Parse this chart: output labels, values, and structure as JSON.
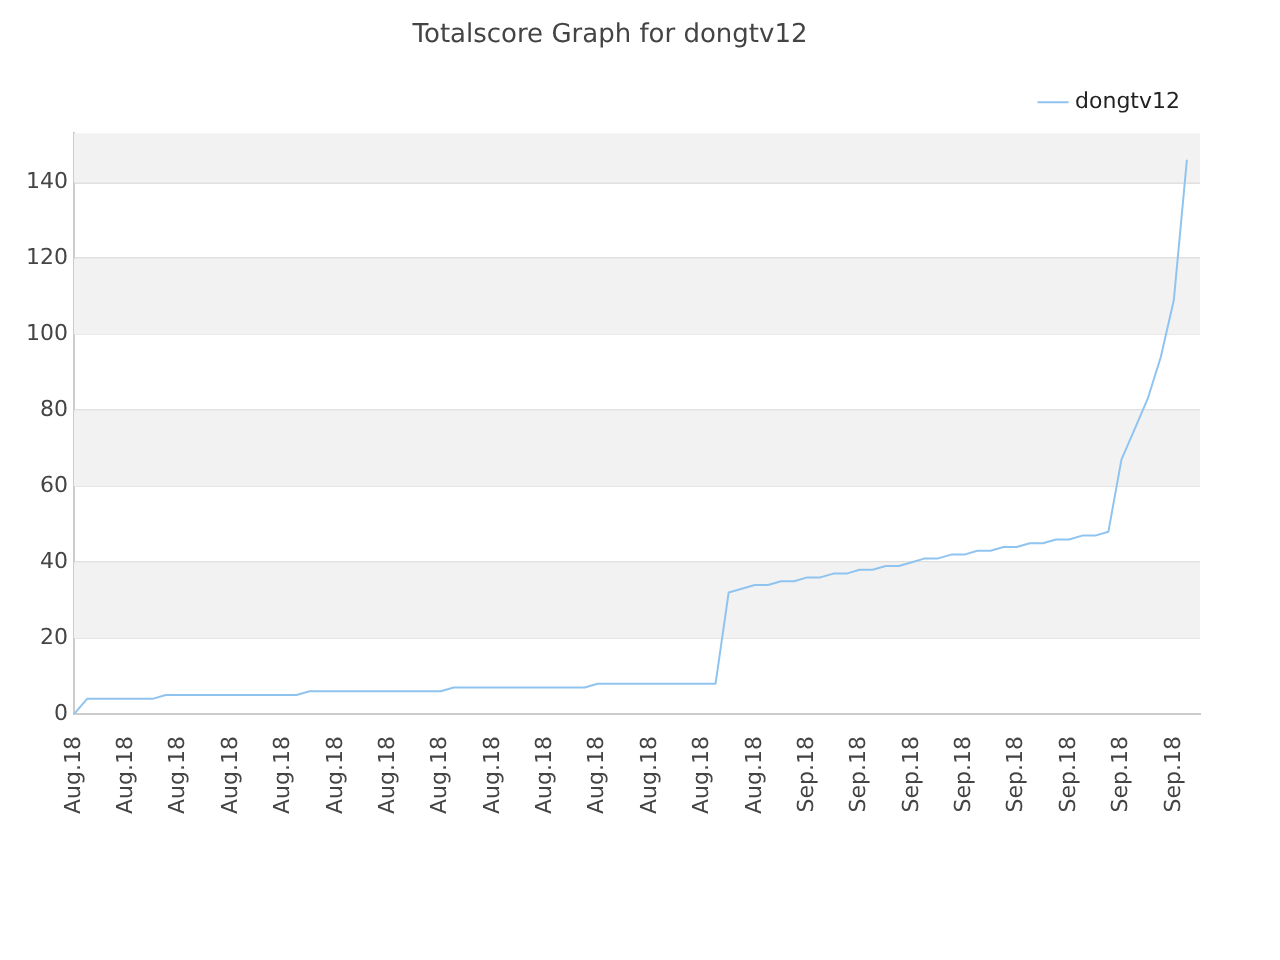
{
  "chart_data": {
    "type": "line",
    "title": "Totalscore Graph for dongtv12",
    "categories": [
      "Aug.18",
      null,
      null,
      null,
      "Aug.18",
      null,
      null,
      null,
      "Aug.18",
      null,
      null,
      null,
      "Aug.18",
      null,
      null,
      null,
      "Aug.18",
      null,
      null,
      null,
      "Aug.18",
      null,
      null,
      null,
      "Aug.18",
      null,
      null,
      null,
      "Aug.18",
      null,
      null,
      null,
      "Aug.18",
      null,
      null,
      null,
      "Aug.18",
      null,
      null,
      null,
      "Aug.18",
      null,
      null,
      null,
      "Aug.18",
      null,
      null,
      null,
      "Aug.18",
      null,
      null,
      null,
      "Aug.18",
      null,
      null,
      null,
      "Sep.18",
      null,
      null,
      null,
      "Sep.18",
      null,
      null,
      null,
      "Sep.18",
      null,
      null,
      null,
      "Sep.18",
      null,
      null,
      null,
      "Sep.18",
      null,
      null,
      null,
      "Sep.18",
      null,
      null,
      null,
      "Sep.18",
      null,
      null,
      null,
      "Sep.18",
      null,
      null
    ],
    "series": [
      {
        "name": "dongtv12",
        "color": "#90c4f0",
        "values": [
          0,
          4,
          4,
          4,
          4,
          4,
          4,
          5,
          5,
          5,
          5,
          5,
          5,
          5,
          5,
          5,
          5,
          5,
          6,
          6,
          6,
          6,
          6,
          6,
          6,
          6,
          6,
          6,
          6,
          7,
          7,
          7,
          7,
          7,
          7,
          7,
          7,
          7,
          7,
          7,
          8,
          8,
          8,
          8,
          8,
          8,
          8,
          8,
          8,
          8,
          32,
          33,
          34,
          34,
          35,
          35,
          36,
          36,
          37,
          37,
          38,
          38,
          39,
          39,
          40,
          41,
          41,
          42,
          42,
          43,
          43,
          44,
          44,
          45,
          45,
          46,
          46,
          47,
          47,
          48,
          67,
          75,
          83,
          94,
          109,
          146,
          null
        ]
      }
    ],
    "ylim": [
      0,
      153
    ],
    "yticks": [
      0,
      20,
      40,
      60,
      80,
      100,
      120,
      140
    ],
    "grid": "y",
    "legend": "top right",
    "marker": "none",
    "line_style": "solid"
  }
}
